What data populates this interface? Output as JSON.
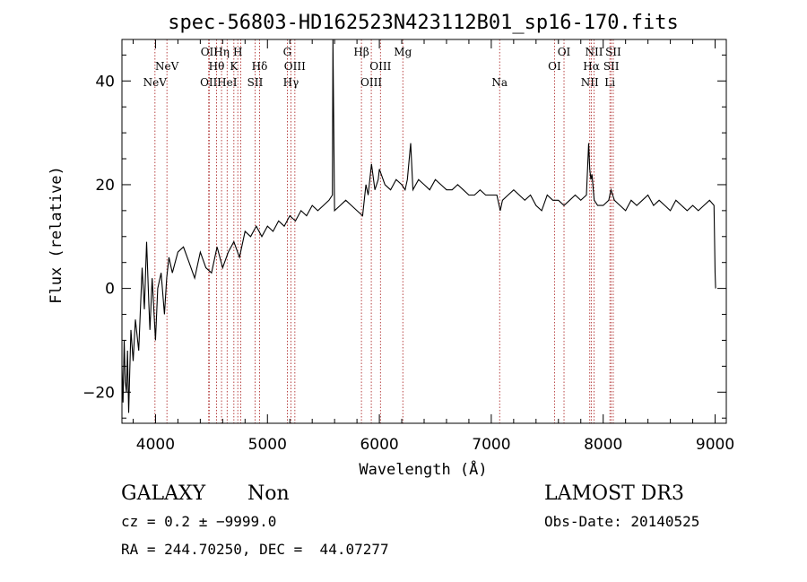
{
  "chart_data": {
    "type": "line",
    "title": "spec-56803-HD162523N423112B01_sp16-170.fits",
    "xlabel": "Wavelength (Å)",
    "ylabel": "Flux (relative)",
    "xlim": [
      3700,
      9100
    ],
    "ylim": [
      -26,
      48
    ],
    "xticks": [
      {
        "value": 4000,
        "label": "4000"
      },
      {
        "value": 5000,
        "label": "5000"
      },
      {
        "value": 6000,
        "label": "6000"
      },
      {
        "value": 7000,
        "label": "7000"
      },
      {
        "value": 8000,
        "label": "8000"
      },
      {
        "value": 9000,
        "label": "9000"
      }
    ],
    "yticks": [
      {
        "value": -20,
        "label": "−20"
      },
      {
        "value": 0,
        "label": "0"
      },
      {
        "value": 20,
        "label": "20"
      },
      {
        "value": 40,
        "label": "40"
      }
    ],
    "series": [
      {
        "name": "spectrum",
        "x": [
          3700,
          3710,
          3720,
          3730,
          3740,
          3750,
          3760,
          3770,
          3780,
          3800,
          3820,
          3850,
          3880,
          3900,
          3920,
          3940,
          3950,
          3970,
          4000,
          4020,
          4050,
          4080,
          4100,
          4120,
          4150,
          4200,
          4250,
          4300,
          4350,
          4400,
          4450,
          4500,
          4550,
          4600,
          4650,
          4700,
          4750,
          4800,
          4850,
          4900,
          4950,
          5000,
          5050,
          5100,
          5150,
          5200,
          5250,
          5300,
          5350,
          5400,
          5450,
          5500,
          5550,
          5580,
          5585,
          5600,
          5650,
          5700,
          5750,
          5800,
          5850,
          5880,
          5900,
          5930,
          5960,
          5990,
          6000,
          6050,
          6100,
          6150,
          6200,
          6230,
          6250,
          6280,
          6300,
          6350,
          6400,
          6450,
          6500,
          6550,
          6600,
          6650,
          6700,
          6750,
          6800,
          6850,
          6900,
          6950,
          7000,
          7050,
          7080,
          7100,
          7150,
          7200,
          7250,
          7300,
          7350,
          7400,
          7450,
          7500,
          7550,
          7600,
          7650,
          7700,
          7750,
          7800,
          7850,
          7870,
          7880,
          7890,
          7900,
          7920,
          7950,
          8000,
          8050,
          8070,
          8100,
          8150,
          8200,
          8250,
          8300,
          8350,
          8400,
          8450,
          8500,
          8550,
          8600,
          8650,
          8700,
          8750,
          8800,
          8850,
          8900,
          8950,
          8990,
          9000,
          9005
        ],
        "y": [
          -15,
          -22,
          -10,
          -18,
          -20,
          -12,
          -24,
          -16,
          -8,
          -14,
          -6,
          -12,
          4,
          -4,
          9,
          -3,
          -8,
          2,
          -10,
          0,
          3,
          -5,
          2,
          6,
          3,
          7,
          8,
          5,
          2,
          7,
          4,
          3,
          8,
          4,
          7,
          9,
          6,
          11,
          10,
          12,
          10,
          12,
          11,
          13,
          12,
          14,
          13,
          15,
          14,
          16,
          15,
          16,
          17,
          18,
          48,
          15,
          16,
          17,
          16,
          15,
          14,
          20,
          18,
          24,
          19,
          21,
          23,
          20,
          19,
          21,
          20,
          19,
          21,
          28,
          19,
          21,
          20,
          19,
          21,
          20,
          19,
          19,
          20,
          19,
          18,
          18,
          19,
          18,
          18,
          18,
          15,
          17,
          18,
          19,
          18,
          17,
          18,
          16,
          15,
          18,
          17,
          17,
          16,
          17,
          18,
          17,
          18,
          28,
          23,
          21,
          22,
          17,
          16,
          16,
          17,
          19,
          17,
          16,
          15,
          17,
          16,
          17,
          18,
          16,
          17,
          16,
          15,
          17,
          16,
          15,
          16,
          15,
          16,
          17,
          16,
          3,
          0
        ]
      }
    ],
    "lines": [
      {
        "name": "NeV",
        "value": 3995,
        "label": "NeV",
        "level": 3
      },
      {
        "name": "NeV",
        "value": 4102,
        "label": "NeV",
        "level": 2
      },
      {
        "name": "OII",
        "value": 4475,
        "label": "OII",
        "level": 3
      },
      {
        "name": "OII",
        "value": 4480,
        "label": "OII",
        "level": 1
      },
      {
        "name": "Hθ",
        "value": 4545,
        "label": "Hθ",
        "level": 2
      },
      {
        "name": "Hη",
        "value": 4590,
        "label": "Hη",
        "level": 1
      },
      {
        "name": "HeI",
        "value": 4640,
        "label": "HeI",
        "level": 3
      },
      {
        "name": "K",
        "value": 4700,
        "label": "K",
        "level": 2
      },
      {
        "name": "H",
        "value": 4735,
        "label": "H",
        "level": 1
      },
      {
        "name": "HeI",
        "value": 4762,
        "label": "",
        "level": 3
      },
      {
        "name": "SII",
        "value": 4890,
        "label": "SII",
        "level": 3
      },
      {
        "name": "Hδ",
        "value": 4930,
        "label": "Hδ",
        "level": 2
      },
      {
        "name": "G",
        "value": 5178,
        "label": "G",
        "level": 1
      },
      {
        "name": "Hγ",
        "value": 5210,
        "label": "Hγ",
        "level": 3
      },
      {
        "name": "OIII",
        "value": 5245,
        "label": "OIII",
        "level": 2
      },
      {
        "name": "Hβ",
        "value": 5840,
        "label": "Hβ",
        "level": 1
      },
      {
        "name": "OIII",
        "value": 5928,
        "label": "OIII",
        "level": 3
      },
      {
        "name": "OIII",
        "value": 6010,
        "label": "OIII",
        "level": 2
      },
      {
        "name": "Mg",
        "value": 6210,
        "label": "Mg",
        "level": 1
      },
      {
        "name": "Na",
        "value": 7075,
        "label": "Na",
        "level": 3
      },
      {
        "name": "OI",
        "value": 7565,
        "label": "OI",
        "level": 2
      },
      {
        "name": "OI",
        "value": 7650,
        "label": "OI",
        "level": 1
      },
      {
        "name": "NII",
        "value": 7880,
        "label": "NII",
        "level": 3
      },
      {
        "name": "Hα",
        "value": 7895,
        "label": "Hα",
        "level": 2
      },
      {
        "name": "NII",
        "value": 7918,
        "label": "NII",
        "level": 1
      },
      {
        "name": "Li",
        "value": 8060,
        "label": "Li",
        "level": 3
      },
      {
        "name": "SII",
        "value": 8072,
        "label": "SII",
        "level": 2
      },
      {
        "name": "SII",
        "value": 8090,
        "label": "SII",
        "level": 1
      }
    ],
    "legend": null,
    "grid": false
  },
  "info": {
    "object_class": "GALAXY",
    "subclass": "Non",
    "survey": "LAMOST DR3",
    "redshift_text": "cz = 0.2 ± −9999.0",
    "obs_date": "Obs-Date: 20140525",
    "coords": "RA = 244.70250, DEC =  44.07277"
  },
  "colors": {
    "axis": "#000000",
    "line_marker": "#b03030",
    "spectrum": "#000000"
  }
}
